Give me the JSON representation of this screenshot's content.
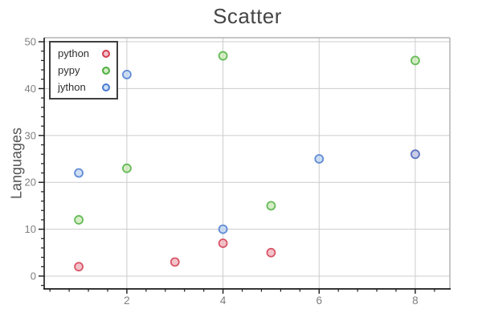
{
  "chart_data": {
    "type": "scatter",
    "title": "Scatter",
    "xlabel": "",
    "ylabel": "Languages",
    "xlim": [
      0.28,
      8.72
    ],
    "ylim": [
      -2.74,
      50.86
    ],
    "xticks": [
      2,
      4,
      6,
      8
    ],
    "yticks": [
      0,
      10,
      20,
      30,
      40,
      50
    ],
    "x_minor_step": 0.4,
    "y_minor_step": 2,
    "grid": true,
    "legend_position": "upper-left",
    "colors": {
      "grid": "#cccccc",
      "box_border": "#b3b3b3",
      "spine": "#1a1a1a",
      "tick_label": "#7f7f7f",
      "title": "#454545",
      "ylabel_color": "#555555",
      "legend_border": "#3f3f3f"
    },
    "series": [
      {
        "name": "python",
        "x": [
          1,
          3,
          4,
          5,
          8
        ],
        "y": [
          2,
          3,
          7,
          5,
          26
        ],
        "stroke": "#d43d52",
        "fill": "#eeaab4",
        "legend_fill": "#f0c0c9"
      },
      {
        "name": "pypy",
        "x": [
          1,
          2,
          4,
          5,
          8
        ],
        "y": [
          12,
          23,
          47,
          15,
          46
        ],
        "stroke": "#4cb03e",
        "fill": "#c4e6ae",
        "legend_fill": "#d3ebc4"
      },
      {
        "name": "jython",
        "x": [
          1,
          2,
          4,
          6,
          8
        ],
        "y": [
          22,
          43,
          10,
          25,
          26
        ],
        "stroke": "#4a7ad0",
        "fill": "#b9d2f0",
        "legend_fill": "#cee0f5"
      }
    ]
  }
}
